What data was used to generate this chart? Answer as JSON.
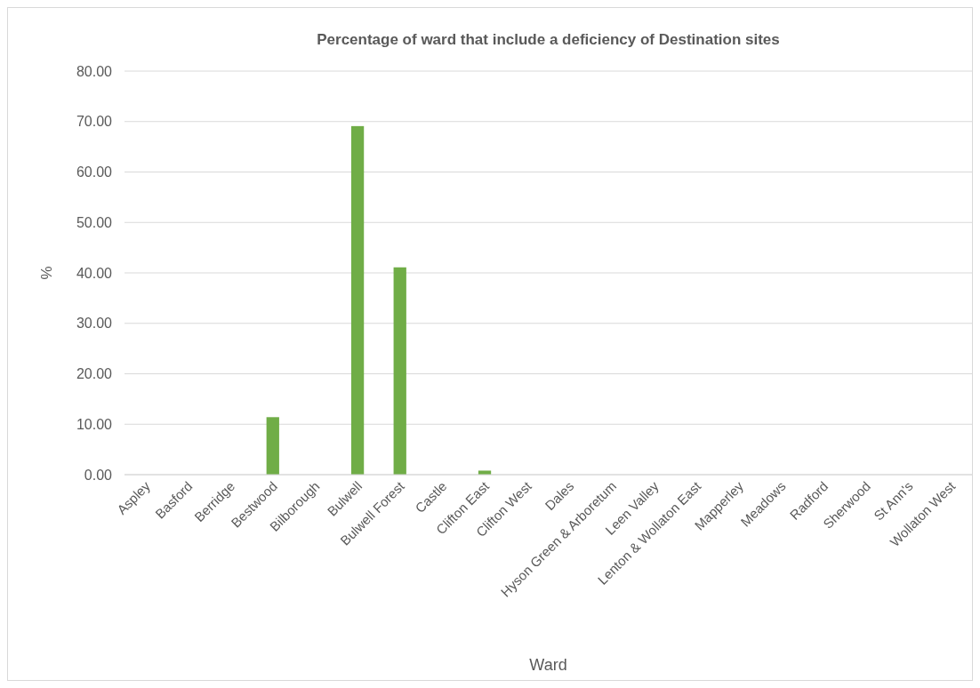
{
  "chart_data": {
    "type": "bar",
    "title": "Percentage of ward that include a deficiency of Destination sites",
    "xlabel": "Ward",
    "ylabel": "%",
    "categories": [
      "Aspley",
      "Basford",
      "Berridge",
      "Bestwood",
      "Bilborough",
      "Bulwell",
      "Bulwell Forest",
      "Castle",
      "Clifton East",
      "Clifton West",
      "Dales",
      "Hyson Green & Arboretum",
      "Leen Valley",
      "Lenton & Wollaton East",
      "Mapperley",
      "Meadows",
      "Radford",
      "Sherwood",
      "St Ann's",
      "Wollaton West"
    ],
    "values": [
      0,
      0,
      0,
      11.4,
      0,
      69.1,
      41.1,
      0,
      0.8,
      0,
      0,
      0,
      0,
      0,
      0,
      0,
      0,
      0,
      0,
      0
    ],
    "color": "#70ad47",
    "ylim": [
      0,
      80
    ],
    "yticks": [
      {
        "value": 0,
        "label": "0.00"
      },
      {
        "value": 10,
        "label": "10.00"
      },
      {
        "value": 20,
        "label": "20.00"
      },
      {
        "value": 30,
        "label": "30.00"
      },
      {
        "value": 40,
        "label": "40.00"
      },
      {
        "value": 50,
        "label": "50.00"
      },
      {
        "value": 60,
        "label": "60.00"
      },
      {
        "value": 70,
        "label": "70.00"
      },
      {
        "value": 80,
        "label": "80.00"
      }
    ],
    "grid": "y"
  }
}
